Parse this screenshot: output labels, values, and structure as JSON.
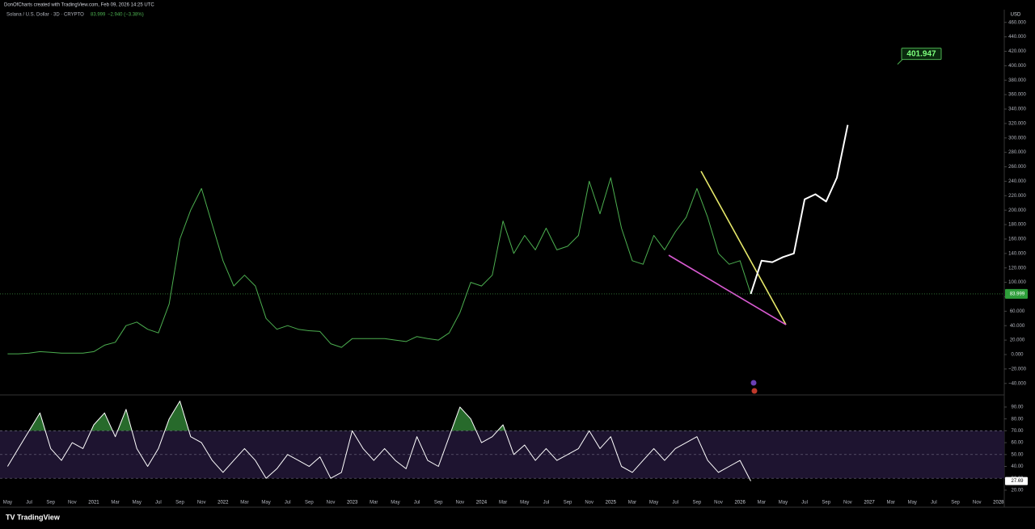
{
  "credit": "DonOfCharts created with TradingView.com, Feb 09, 2026 14:25 UTC",
  "currency": "USD",
  "change": "−2.940 (−3.38%)",
  "footer": "TradingView",
  "chart_data": {
    "type": "line",
    "categories": [
      "May",
      null,
      "Jul",
      null,
      "Sep",
      null,
      "Nov",
      null,
      "2021",
      null,
      "Mar",
      null,
      "May",
      null,
      "Jul",
      null,
      "Sep",
      null,
      "Nov",
      null,
      "2022",
      null,
      "Mar",
      null,
      "May",
      null,
      "Jul",
      null,
      "Sep",
      null,
      "Nov",
      null,
      "2023",
      null,
      "Mar",
      null,
      "May",
      null,
      "Jul",
      null,
      "Sep",
      null,
      "Nov",
      null,
      "2024",
      null,
      "Mar",
      null,
      "May",
      null,
      "Jul",
      null,
      "Sep",
      null,
      "Nov",
      null,
      "2025",
      null,
      "Mar",
      null,
      "May",
      null,
      "Jul",
      null,
      "Sep",
      null,
      "Nov",
      null,
      "2026",
      null,
      "Mar",
      null,
      "May",
      null,
      "Jul",
      null,
      "Sep",
      null,
      "Nov",
      null,
      "2027",
      null,
      "Mar",
      null,
      "May",
      null,
      "Jul",
      null,
      "Sep",
      null,
      "Nov",
      null,
      "2028"
    ],
    "series": [
      {
        "name": "Solana / U.S. Dollar · 3D · CRYPTO",
        "color": "#4caf50",
        "values": [
          1,
          1,
          2,
          4,
          3,
          2,
          2,
          2,
          4,
          13,
          17,
          40,
          45,
          35,
          30,
          70,
          160,
          200,
          230,
          180,
          130,
          95,
          110,
          95,
          50,
          35,
          40,
          35,
          33,
          32,
          15,
          10,
          22,
          22,
          22,
          22,
          20,
          18,
          25,
          22,
          20,
          30,
          58,
          100,
          95,
          110,
          185,
          140,
          165,
          145,
          175,
          145,
          150,
          165,
          240,
          195,
          245,
          175,
          130,
          125,
          165,
          145,
          170,
          190,
          230,
          190,
          140,
          125,
          130,
          83.999,
          null,
          null,
          null,
          null,
          null,
          null,
          null,
          null,
          null,
          null,
          null,
          null,
          null,
          null,
          null,
          null,
          null,
          null,
          null,
          null,
          null,
          null,
          null
        ]
      },
      {
        "color": "#ffffff",
        "values": [
          null,
          null,
          null,
          null,
          null,
          null,
          null,
          null,
          null,
          null,
          null,
          null,
          null,
          null,
          null,
          null,
          null,
          null,
          null,
          null,
          null,
          null,
          null,
          null,
          null,
          null,
          null,
          null,
          null,
          null,
          null,
          null,
          null,
          null,
          null,
          null,
          null,
          null,
          null,
          null,
          null,
          null,
          null,
          null,
          null,
          null,
          null,
          null,
          null,
          null,
          null,
          null,
          null,
          null,
          null,
          null,
          null,
          null,
          null,
          null,
          null,
          null,
          null,
          null,
          null,
          null,
          null,
          null,
          null,
          83.999,
          130,
          128,
          135,
          140,
          215,
          222,
          212,
          245,
          318,
          null,
          null,
          null,
          null,
          null,
          null,
          null,
          null,
          null,
          null,
          null,
          null,
          null,
          null
        ]
      },
      {
        "color": "#ffffff",
        "axis": "y2",
        "values": [
          40,
          55,
          70,
          85,
          55,
          45,
          60,
          55,
          75,
          85,
          65,
          88,
          55,
          40,
          55,
          80,
          95,
          65,
          60,
          45,
          35,
          45,
          55,
          45,
          30,
          38,
          50,
          45,
          40,
          48,
          30,
          35,
          70,
          55,
          45,
          55,
          45,
          38,
          65,
          45,
          40,
          65,
          90,
          80,
          60,
          65,
          75,
          50,
          58,
          45,
          55,
          45,
          50,
          55,
          70,
          55,
          65,
          40,
          35,
          45,
          55,
          45,
          55,
          60,
          65,
          45,
          35,
          40,
          45,
          27.69,
          null,
          null,
          null,
          null,
          null,
          null,
          null,
          null,
          null,
          null,
          null,
          null,
          null,
          null,
          null,
          null,
          null,
          null,
          null,
          null,
          null,
          null,
          null
        ]
      }
    ],
    "ylim": [
      -54.8,
      477.6
    ],
    "yticks": [
      {
        "value": -40,
        "label": "−40.000"
      },
      {
        "value": -20,
        "label": "−20.000"
      },
      {
        "value": 0,
        "label": "0.000"
      },
      {
        "value": 20,
        "label": "20.000"
      },
      {
        "value": 40,
        "label": "40.000"
      },
      {
        "value": 60,
        "label": "60.000"
      },
      {
        "value": 80,
        "label": "80.000"
      },
      {
        "value": 100,
        "label": "100.000"
      },
      {
        "value": 120,
        "label": "120.000"
      },
      {
        "value": 140,
        "label": "140.000"
      },
      {
        "value": 160,
        "label": "160.000"
      },
      {
        "value": 180,
        "label": "180.000"
      },
      {
        "value": 200,
        "label": "200.000"
      },
      {
        "value": 220,
        "label": "220.000"
      },
      {
        "value": 240,
        "label": "240.000"
      },
      {
        "value": 260,
        "label": "260.000"
      },
      {
        "value": 280,
        "label": "280.000"
      },
      {
        "value": 300,
        "label": "300.000"
      },
      {
        "value": 320,
        "label": "320.000"
      },
      {
        "value": 340,
        "label": "340.000"
      },
      {
        "value": 360,
        "label": "360.000"
      },
      {
        "value": 380,
        "label": "380.000"
      },
      {
        "value": 400,
        "label": "400.000"
      },
      {
        "value": 420,
        "label": "420.000"
      },
      {
        "value": 440,
        "label": "440.000"
      },
      {
        "value": 460,
        "label": "460.000"
      }
    ],
    "y2lim": [
      14.5,
      99.5
    ],
    "y2ticks": [
      {
        "value": 20,
        "label": "20.00"
      },
      {
        "value": 30,
        "label": "30.00"
      },
      {
        "value": 40,
        "label": "40.00"
      },
      {
        "value": 50,
        "label": "50.00"
      },
      {
        "value": 60,
        "label": "60.00"
      },
      {
        "value": 70,
        "label": "70.00"
      },
      {
        "value": 80,
        "label": "80.00"
      },
      {
        "value": 90,
        "label": "90.00"
      }
    ],
    "rsi_band": [
      30,
      70
    ],
    "rsi_mid": 50,
    "overbought_color": "#2e7d32",
    "band_color": "#1e1430",
    "annotation": 401.947
  }
}
